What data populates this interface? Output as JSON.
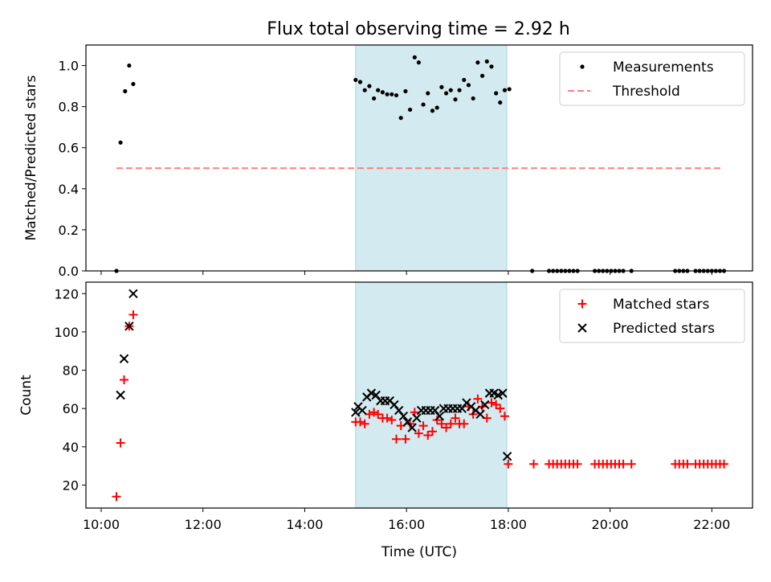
{
  "title": "Flux total observing time = 2.92 h",
  "chart_data": [
    {
      "type": "scatter",
      "ylabel": "Matched/Predicted stars",
      "xlim": [
        9.7,
        22.8
      ],
      "ylim": [
        0,
        1.1
      ],
      "yticks": [
        0.0,
        0.2,
        0.4,
        0.6,
        0.8,
        1.0
      ],
      "yticklabels": [
        "0.0",
        "0.2",
        "0.4",
        "0.6",
        "0.8",
        "1.0"
      ],
      "shaded_region": {
        "x": [
          15.0,
          17.97
        ],
        "color": "#d3eaf0"
      },
      "legend_position": "upper right",
      "series": [
        {
          "name": "Measurements",
          "marker": "dot",
          "color": "#000000",
          "x": [
            10.3,
            10.38,
            10.47,
            10.55,
            10.63,
            15.0,
            15.09,
            15.18,
            15.27,
            15.36,
            15.44,
            15.53,
            15.62,
            15.71,
            15.8,
            15.89,
            15.98,
            16.07,
            16.16,
            16.24,
            16.33,
            16.42,
            16.51,
            16.6,
            16.69,
            16.78,
            16.87,
            16.96,
            17.04,
            17.13,
            17.22,
            17.31,
            17.4,
            17.49,
            17.58,
            17.67,
            17.76,
            17.84,
            17.93,
            18.02,
            18.47,
            18.8,
            18.88,
            18.96,
            19.04,
            19.12,
            19.2,
            19.28,
            19.36,
            19.7,
            19.78,
            19.86,
            19.94,
            20.02,
            20.1,
            20.18,
            20.26,
            20.42,
            21.28,
            21.36,
            21.44,
            21.52,
            21.68,
            21.76,
            21.84,
            21.92,
            22.0,
            22.08,
            22.16,
            22.24
          ],
          "y": [
            0.0,
            0.625,
            0.875,
            1.0,
            0.91,
            0.93,
            0.92,
            0.88,
            0.9,
            0.84,
            0.88,
            0.87,
            0.86,
            0.86,
            0.855,
            0.745,
            0.875,
            0.785,
            1.04,
            1.015,
            0.81,
            0.865,
            0.78,
            0.795,
            0.895,
            0.865,
            0.88,
            0.835,
            0.88,
            0.93,
            0.905,
            0.84,
            1.015,
            0.95,
            1.02,
            0.995,
            0.865,
            0.82,
            0.88,
            0.885,
            0.0,
            0.0,
            0.0,
            0.0,
            0.0,
            0.0,
            0.0,
            0.0,
            0.0,
            0.0,
            0.0,
            0.0,
            0.0,
            0.0,
            0.0,
            0.0,
            0.0,
            0.0,
            0.0,
            0.0,
            0.0,
            0.0,
            0.0,
            0.0,
            0.0,
            0.0,
            0.0,
            0.0,
            0.0,
            0.0
          ]
        },
        {
          "name": "Threshold",
          "marker": "dashed-line",
          "color": "#ff7f7f",
          "x": [
            10.3,
            22.2
          ],
          "y": [
            0.5,
            0.5
          ]
        }
      ]
    },
    {
      "type": "scatter",
      "ylabel": "Count",
      "xlabel": "Time (UTC)",
      "xlim": [
        9.7,
        22.8
      ],
      "ylim": [
        8,
        126
      ],
      "xticks": [
        10,
        12,
        14,
        16,
        18,
        20,
        22
      ],
      "xticklabels": [
        "10:00",
        "12:00",
        "14:00",
        "16:00",
        "18:00",
        "20:00",
        "22:00"
      ],
      "yticks": [
        20,
        40,
        60,
        80,
        100,
        120
      ],
      "yticklabels": [
        "20",
        "40",
        "60",
        "80",
        "100",
        "120"
      ],
      "shaded_region": {
        "x": [
          15.0,
          17.97
        ],
        "color": "#d3eaf0"
      },
      "legend_position": "upper right",
      "series": [
        {
          "name": "Matched stars",
          "marker": "plus",
          "color": "#ff0000",
          "x": [
            10.3,
            10.38,
            10.45,
            10.55,
            10.63,
            15.0,
            15.09,
            15.18,
            15.27,
            15.36,
            15.44,
            15.53,
            15.62,
            15.71,
            15.8,
            15.89,
            15.98,
            16.07,
            16.16,
            16.24,
            16.33,
            16.42,
            16.51,
            16.6,
            16.69,
            16.78,
            16.87,
            16.96,
            17.04,
            17.13,
            17.22,
            17.31,
            17.4,
            17.49,
            17.58,
            17.67,
            17.76,
            17.84,
            17.93,
            18.0,
            18.5,
            18.8,
            18.88,
            18.96,
            19.04,
            19.12,
            19.2,
            19.28,
            19.36,
            19.7,
            19.78,
            19.86,
            19.94,
            20.02,
            20.1,
            20.18,
            20.26,
            20.42,
            21.28,
            21.36,
            21.44,
            21.52,
            21.68,
            21.76,
            21.84,
            21.92,
            22.0,
            22.08,
            22.16,
            22.24
          ],
          "y": [
            14,
            42,
            75,
            103,
            109,
            53,
            53,
            52,
            57,
            58,
            57,
            55,
            55,
            54,
            44,
            51,
            44,
            52,
            58,
            47,
            51,
            46,
            48,
            54,
            52,
            50,
            52,
            55,
            52,
            52,
            61,
            57,
            65,
            61,
            55,
            63,
            62,
            60,
            56,
            31,
            31,
            31,
            31,
            31,
            31,
            31,
            31,
            31,
            31,
            31,
            31,
            31,
            31,
            31,
            31,
            31,
            31,
            31,
            31,
            31,
            31,
            31,
            31,
            31,
            31,
            31,
            31,
            31,
            31,
            31
          ]
        },
        {
          "name": "Predicted stars",
          "marker": "x",
          "color": "#000000",
          "x": [
            10.38,
            10.45,
            10.55,
            10.63,
            15.0,
            15.05,
            15.13,
            15.22,
            15.31,
            15.4,
            15.49,
            15.58,
            15.67,
            15.76,
            15.85,
            15.94,
            16.02,
            16.11,
            16.2,
            16.29,
            16.38,
            16.47,
            16.56,
            16.65,
            16.73,
            16.82,
            16.91,
            17.0,
            17.09,
            17.18,
            17.27,
            17.36,
            17.45,
            17.54,
            17.63,
            17.72,
            17.8,
            17.89,
            17.98
          ],
          "y": [
            67,
            86,
            103,
            120,
            58,
            61,
            59,
            66,
            68,
            67,
            64,
            64,
            64,
            62,
            59,
            56,
            53,
            50,
            55,
            59,
            59,
            59,
            59,
            56,
            60,
            60,
            60,
            60,
            60,
            63,
            61,
            59,
            57,
            62,
            68,
            68,
            67,
            68,
            35
          ]
        }
      ]
    }
  ]
}
